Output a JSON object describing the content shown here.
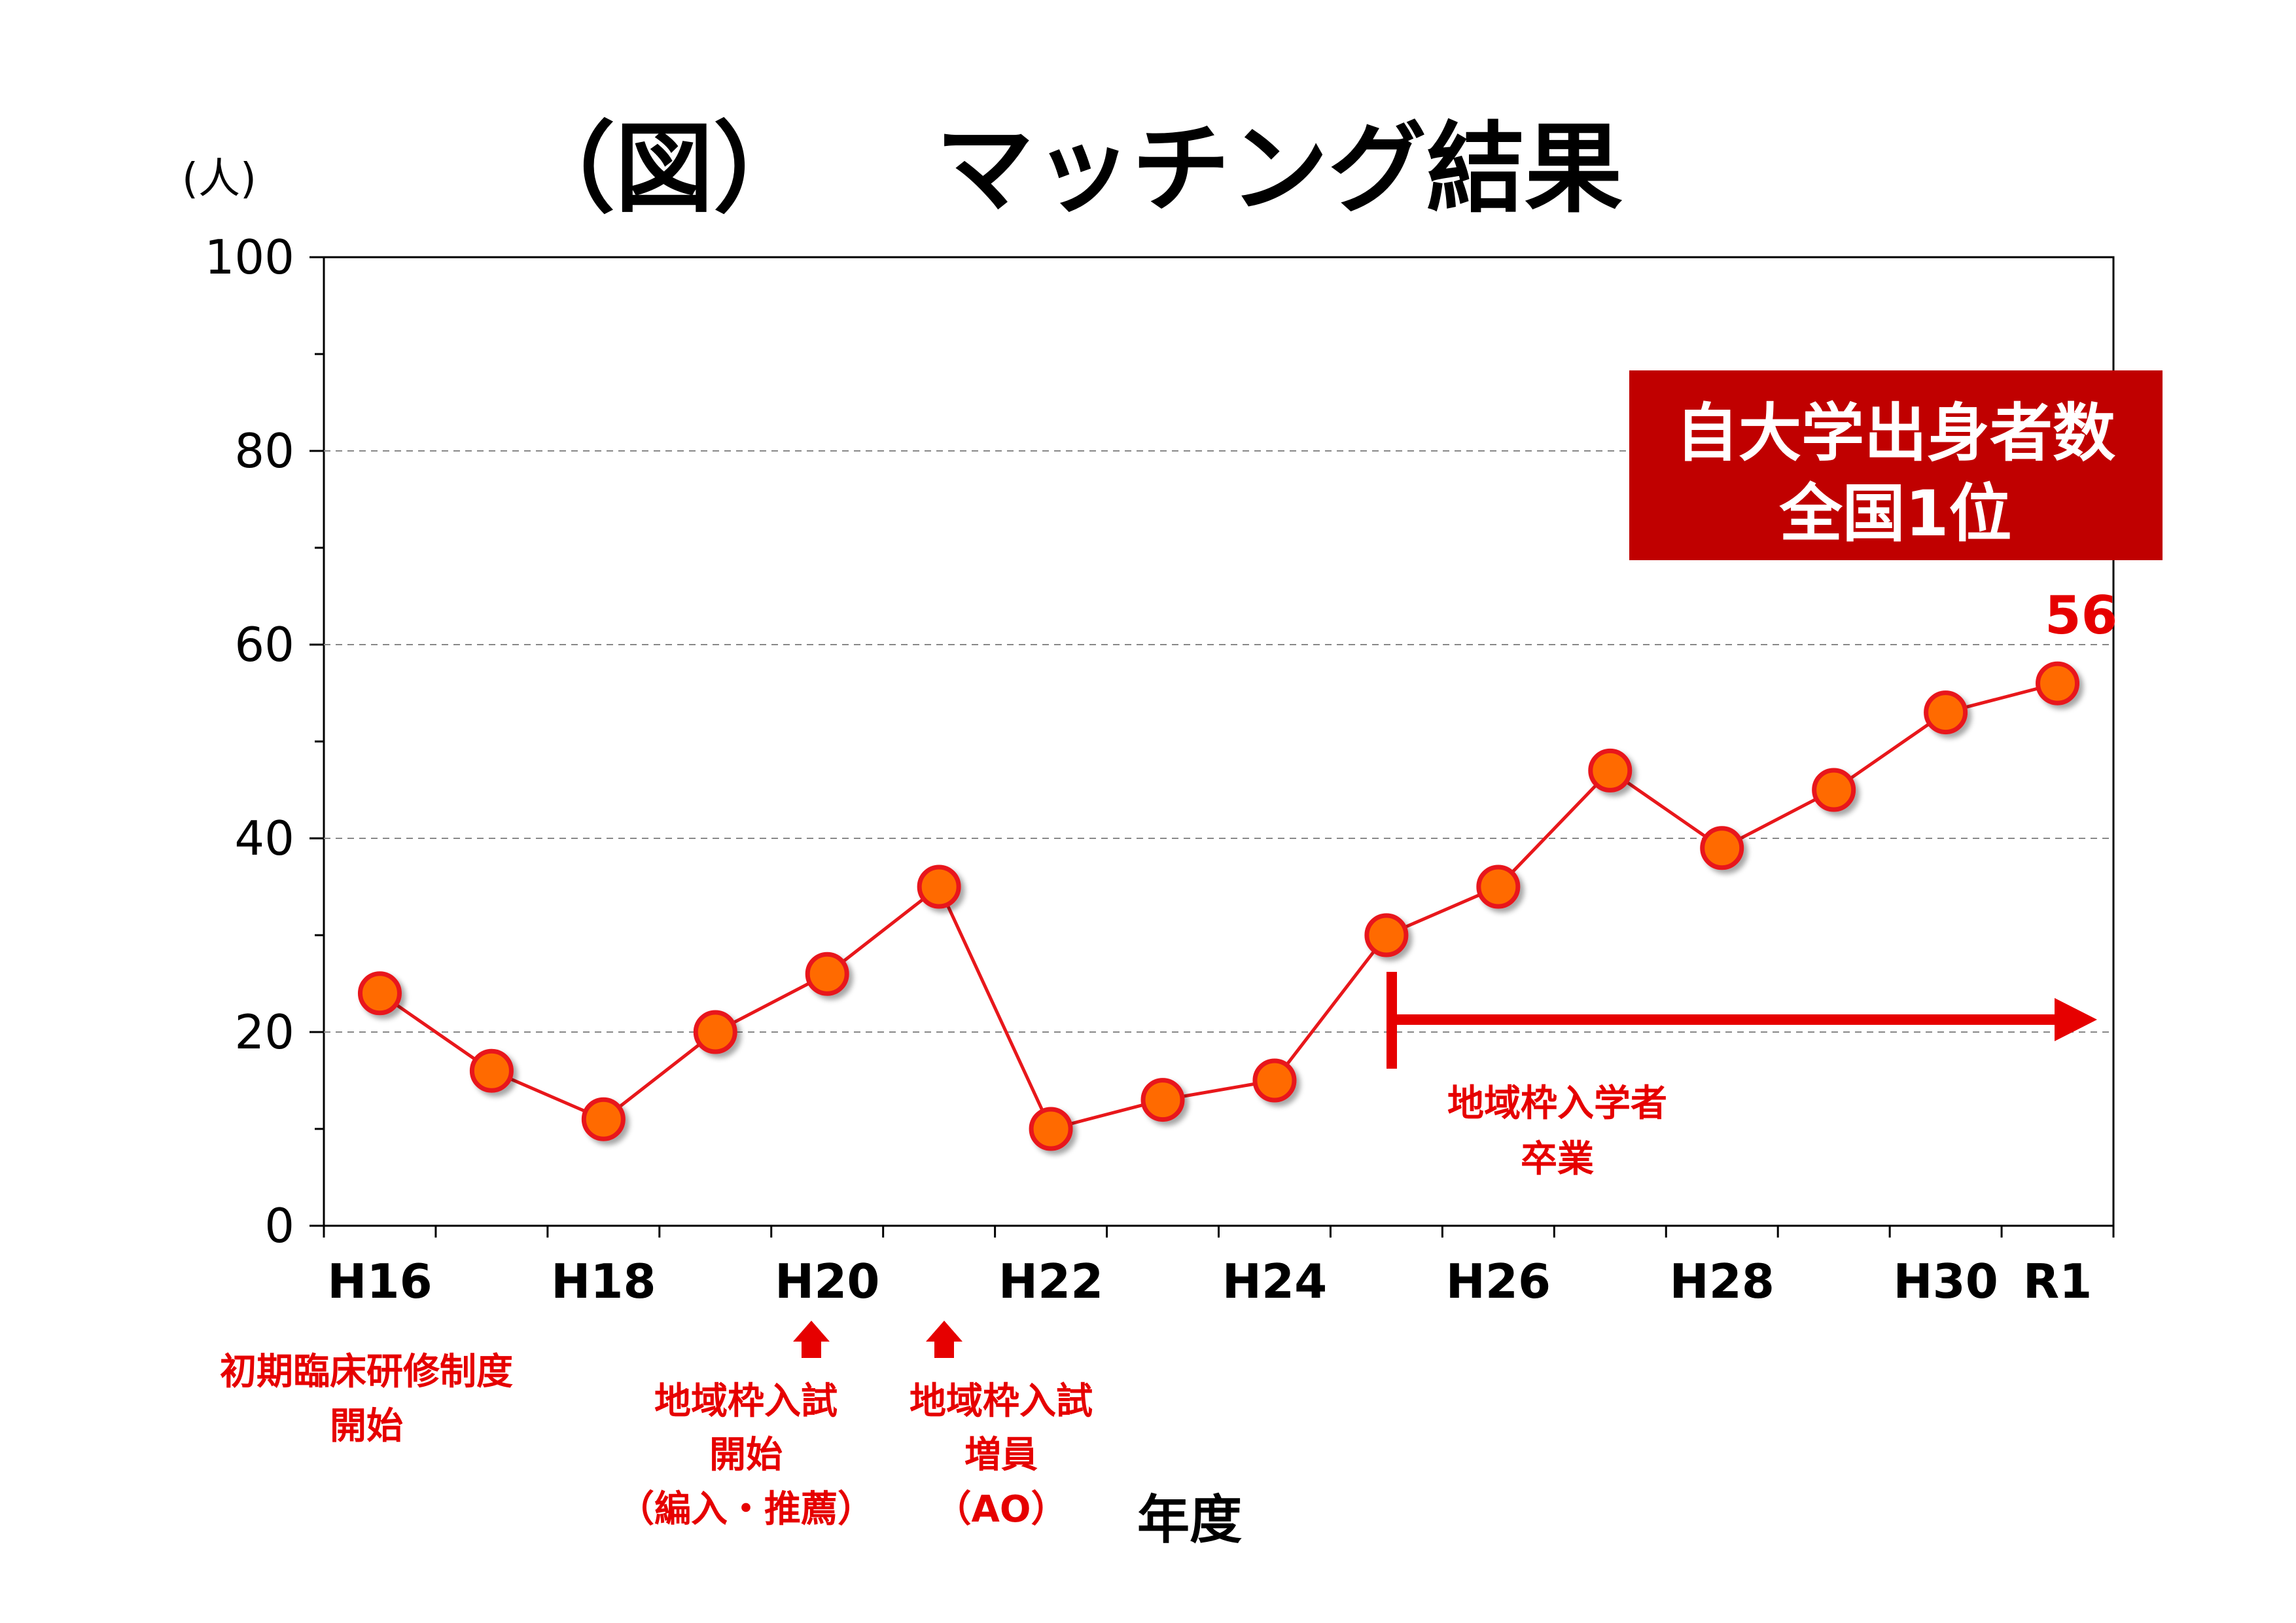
{
  "title_bracket": "（図）",
  "title": "マッチング結果",
  "unit_label": "(人)",
  "x_axis_label": "年度",
  "badge": {
    "line1": "自大学出身者数",
    "line2": "全国1位",
    "color": "#c00000"
  },
  "last_value_label": "56",
  "notes": {
    "h16": [
      "初期臨床研修制度",
      "開始"
    ],
    "h20": [
      "地域枠入試",
      "開始",
      "（編入・推薦）"
    ],
    "h21": [
      "地域枠入試",
      "増員",
      "（AO）"
    ],
    "h25": [
      "地域枠入学者",
      "卒業"
    ]
  },
  "colors": {
    "line": "#e8171b",
    "marker_fill": "#ff6a00",
    "marker_edge": "#e8171b",
    "annotation": "#e60000"
  },
  "chart_data": {
    "type": "line",
    "categories": [
      "H16",
      "H17",
      "H18",
      "H19",
      "H20",
      "H21",
      "H22",
      "H23",
      "H24",
      "H25",
      "H26",
      "H27",
      "H28",
      "H29",
      "H30",
      "R1"
    ],
    "x_tick_labels": [
      "H16",
      "",
      "H18",
      "",
      "H20",
      "",
      "H22",
      "",
      "H24",
      "",
      "H26",
      "",
      "H28",
      "",
      "H30",
      "R1"
    ],
    "series": [
      {
        "values": [
          24,
          16,
          11,
          20,
          26,
          35,
          10,
          13,
          15,
          30,
          35,
          47,
          39,
          45,
          53,
          56
        ]
      }
    ],
    "ylim": [
      0,
      100
    ],
    "y_ticks": [
      "0",
      "20",
      "40",
      "60",
      "80",
      "100"
    ],
    "grid": "dashed horizontal at major ticks"
  }
}
